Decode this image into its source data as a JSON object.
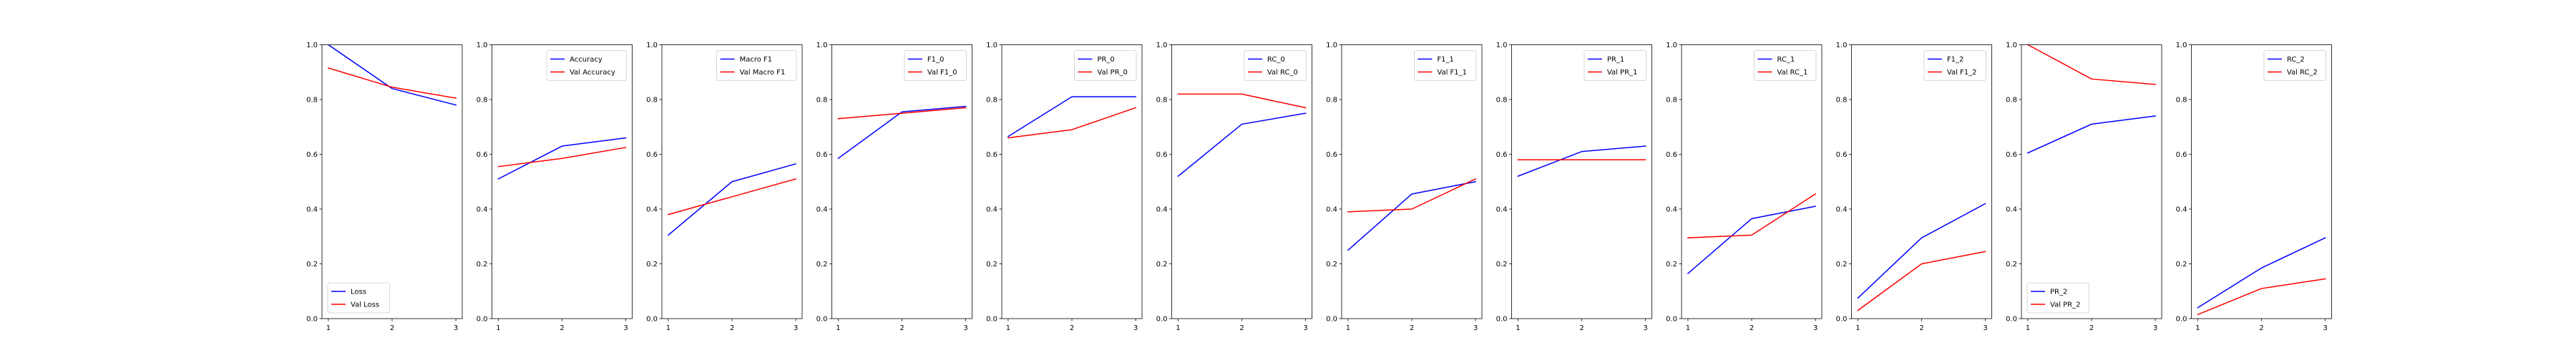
{
  "colors": {
    "train": "#0000ff",
    "val": "#ff0000",
    "axis": "#000000"
  },
  "chart_data": [
    {
      "type": "line",
      "x": [
        1,
        2,
        3
      ],
      "ylim": [
        0,
        1
      ],
      "legend": "lower-left",
      "series": [
        {
          "name": "Loss",
          "values": [
            1.0,
            0.84,
            0.78
          ]
        },
        {
          "name": "Val Loss",
          "values": [
            0.915,
            0.845,
            0.805
          ]
        }
      ]
    },
    {
      "type": "line",
      "x": [
        1,
        2,
        3
      ],
      "ylim": [
        0,
        1
      ],
      "legend": "upper-right",
      "series": [
        {
          "name": "Accuracy",
          "values": [
            0.51,
            0.63,
            0.66
          ]
        },
        {
          "name": "Val Accuracy",
          "values": [
            0.555,
            0.585,
            0.625
          ]
        }
      ]
    },
    {
      "type": "line",
      "x": [
        1,
        2,
        3
      ],
      "ylim": [
        0,
        1
      ],
      "legend": "upper-right",
      "series": [
        {
          "name": "Macro F1",
          "values": [
            0.305,
            0.5,
            0.565
          ]
        },
        {
          "name": "Val Macro F1",
          "values": [
            0.38,
            0.445,
            0.51
          ]
        }
      ]
    },
    {
      "type": "line",
      "x": [
        1,
        2,
        3
      ],
      "ylim": [
        0,
        1
      ],
      "legend": "upper-right",
      "series": [
        {
          "name": "F1_0",
          "values": [
            0.585,
            0.755,
            0.775
          ]
        },
        {
          "name": "Val F1_0",
          "values": [
            0.73,
            0.75,
            0.77
          ]
        }
      ]
    },
    {
      "type": "line",
      "x": [
        1,
        2,
        3
      ],
      "ylim": [
        0,
        1
      ],
      "legend": "upper-right",
      "series": [
        {
          "name": "PR_0",
          "values": [
            0.665,
            0.81,
            0.81
          ]
        },
        {
          "name": "Val PR_0",
          "values": [
            0.66,
            0.69,
            0.77
          ]
        }
      ]
    },
    {
      "type": "line",
      "x": [
        1,
        2,
        3
      ],
      "ylim": [
        0,
        1
      ],
      "legend": "upper-right",
      "series": [
        {
          "name": "RC_0",
          "values": [
            0.52,
            0.71,
            0.75
          ]
        },
        {
          "name": "Val RC_0",
          "values": [
            0.82,
            0.82,
            0.77
          ]
        }
      ]
    },
    {
      "type": "line",
      "x": [
        1,
        2,
        3
      ],
      "ylim": [
        0,
        1
      ],
      "legend": "upper-right",
      "series": [
        {
          "name": "F1_1",
          "values": [
            0.25,
            0.455,
            0.5
          ]
        },
        {
          "name": "Val F1_1",
          "values": [
            0.39,
            0.4,
            0.51
          ]
        }
      ]
    },
    {
      "type": "line",
      "x": [
        1,
        2,
        3
      ],
      "ylim": [
        0,
        1
      ],
      "legend": "upper-right",
      "series": [
        {
          "name": "PR_1",
          "values": [
            0.52,
            0.61,
            0.63
          ]
        },
        {
          "name": "Val PR_1",
          "values": [
            0.58,
            0.58,
            0.58
          ]
        }
      ]
    },
    {
      "type": "line",
      "x": [
        1,
        2,
        3
      ],
      "ylim": [
        0,
        1
      ],
      "legend": "upper-right",
      "series": [
        {
          "name": "RC_1",
          "values": [
            0.165,
            0.365,
            0.41
          ]
        },
        {
          "name": "Val RC_1",
          "values": [
            0.295,
            0.305,
            0.455
          ]
        }
      ]
    },
    {
      "type": "line",
      "x": [
        1,
        2,
        3
      ],
      "ylim": [
        0,
        1
      ],
      "legend": "upper-right",
      "series": [
        {
          "name": "F1_2",
          "values": [
            0.075,
            0.295,
            0.42
          ]
        },
        {
          "name": "Val F1_2",
          "values": [
            0.03,
            0.2,
            0.245
          ]
        }
      ]
    },
    {
      "type": "line",
      "x": [
        1,
        2,
        3
      ],
      "ylim": [
        0,
        1
      ],
      "legend": "lower-left",
      "series": [
        {
          "name": "PR_2",
          "values": [
            0.605,
            0.71,
            0.74
          ]
        },
        {
          "name": "Val PR_2",
          "values": [
            1.0,
            0.875,
            0.855
          ]
        }
      ]
    },
    {
      "type": "line",
      "x": [
        1,
        2,
        3
      ],
      "ylim": [
        0,
        1
      ],
      "legend": "upper-right",
      "series": [
        {
          "name": "RC_2",
          "values": [
            0.04,
            0.185,
            0.295
          ]
        },
        {
          "name": "Val RC_2",
          "values": [
            0.015,
            0.11,
            0.145
          ]
        }
      ]
    }
  ]
}
